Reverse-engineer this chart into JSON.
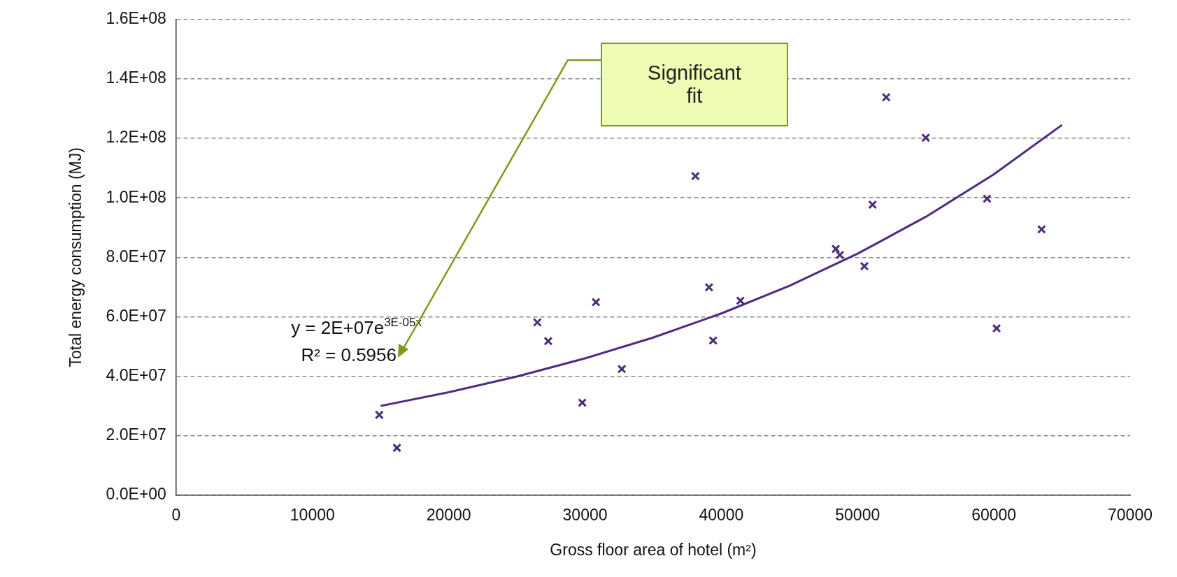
{
  "chart_data": {
    "type": "scatter",
    "xlabel": "Gross floor area of hotel (m²)",
    "ylabel": "Total energy consumption (MJ)",
    "xlim": [
      0,
      70000
    ],
    "xticks": [
      0,
      10000,
      20000,
      30000,
      40000,
      50000,
      60000,
      70000
    ],
    "ylim": [
      0,
      160000000
    ],
    "yticks": [
      {
        "value": 0,
        "label": "0.0E+00"
      },
      {
        "value": 20000000,
        "label": "2.0E+07"
      },
      {
        "value": 40000000,
        "label": "4.0E+07"
      },
      {
        "value": 60000000,
        "label": "6.0E+07"
      },
      {
        "value": 80000000,
        "label": "8.0E+07"
      },
      {
        "value": 100000000,
        "label": "1.0E+08"
      },
      {
        "value": 120000000,
        "label": "1.2E+08"
      },
      {
        "value": 140000000,
        "label": "1.4E+08"
      },
      {
        "value": 160000000,
        "label": "1.6E+08"
      }
    ],
    "grid": "y",
    "legend": false,
    "series": [
      {
        "type": "scatter",
        "marker": "cross",
        "color": "#4b2a7b",
        "x": [
          14900,
          16200,
          26500,
          27300,
          29800,
          30800,
          32700,
          38100,
          39100,
          39400,
          41400,
          48400,
          48700,
          50500,
          51100,
          52100,
          55000,
          59500,
          60200,
          63500
        ],
        "values": [
          27000000,
          15900000,
          58100000,
          51800000,
          31100000,
          64900000,
          42400000,
          107300000,
          69900000,
          52000000,
          65400000,
          82800000,
          80800000,
          77000000,
          97700000,
          133800000,
          120200000,
          99700000,
          56100000,
          89400000
        ]
      },
      {
        "type": "line",
        "marker": "none",
        "color": "#4e2a84",
        "x": [
          15000,
          20000,
          25000,
          30000,
          35000,
          40000,
          45000,
          50000,
          55000,
          60000,
          65000
        ],
        "values": [
          30000000,
          34600000,
          39900000,
          46000000,
          53000000,
          61100000,
          70400000,
          81200000,
          93600000,
          107900000,
          124500000
        ]
      }
    ],
    "annotations": [
      "y = 2E+07e$^{3E-05x}$",
      "R² = 0.5956",
      "Significant fit"
    ]
  }
}
